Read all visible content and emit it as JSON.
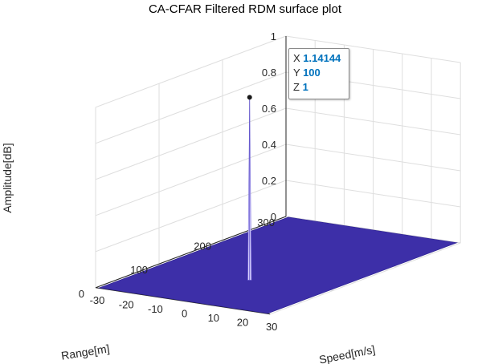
{
  "chart_data": {
    "type": "surface",
    "title": "CA-CFAR Filtered RDM surface plot",
    "xlabel": "Speed[m/s]",
    "ylabel": "Range[m]",
    "zlabel": "Amplitude[dB]",
    "xlim": [
      -30,
      30
    ],
    "ylim": [
      0,
      300
    ],
    "zlim": [
      0,
      1
    ],
    "xticks": [
      "-30",
      "-20",
      "-10",
      "0",
      "10",
      "20",
      "30"
    ],
    "yticks": [
      "0",
      "100",
      "200",
      "300"
    ],
    "zticks": [
      "0",
      "0.2",
      "0.4",
      "0.6",
      "0.8",
      "1"
    ],
    "surface": {
      "baseline_amplitude": 0,
      "color": "#3d2fa8",
      "x_extent": [
        -29,
        29
      ],
      "y_extent": [
        1,
        299
      ]
    },
    "peak": {
      "x": 1.14144,
      "y": 100,
      "z": 1,
      "color": "#d9d2ff"
    },
    "grid": true
  },
  "datatip": {
    "x_label": "X",
    "x_value": "1.14144",
    "y_label": "Y",
    "y_value": "100",
    "z_label": "Z",
    "z_value": "1",
    "value_color": "#0072bd"
  }
}
